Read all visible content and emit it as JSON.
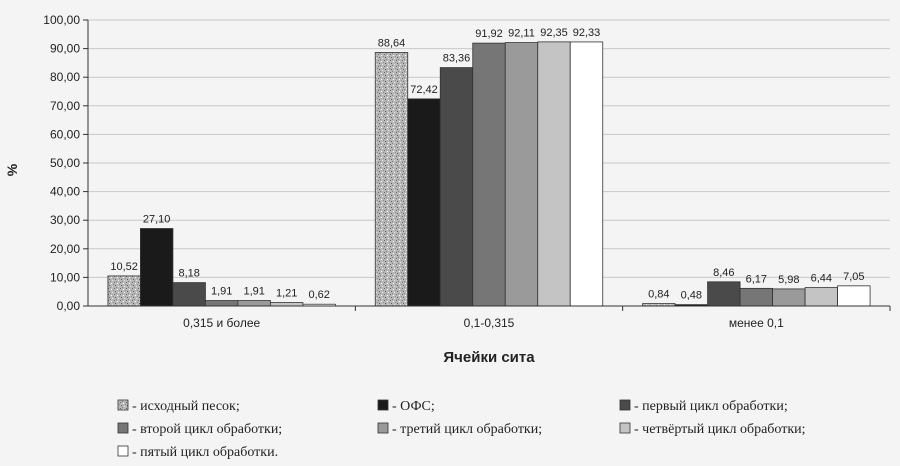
{
  "chart_data": {
    "type": "bar",
    "title": "",
    "xlabel": "Ячейки сита",
    "ylabel": "%",
    "ylim": [
      0,
      100
    ],
    "yticks": [
      "0,00",
      "10,00",
      "20,00",
      "30,00",
      "40,00",
      "50,00",
      "60,00",
      "70,00",
      "80,00",
      "90,00",
      "100,00"
    ],
    "grid": true,
    "legend_position": "bottom",
    "categories": [
      "0,315 и более",
      "0,1-0,315",
      "менее 0,1"
    ],
    "series": [
      {
        "name": "- исходный песок;",
        "values": [
          10.52,
          88.64,
          0.84
        ],
        "labels": [
          "10,52",
          "88,64",
          "0,84"
        ],
        "color": "#bdbdbd",
        "pattern": "speckle"
      },
      {
        "name": "- ОФС;",
        "values": [
          27.1,
          72.42,
          0.48
        ],
        "labels": [
          "27,10",
          "72,42",
          "0,48"
        ],
        "color": "#1a1a1a"
      },
      {
        "name": "- первый цикл обработки;",
        "values": [
          8.18,
          83.36,
          8.46
        ],
        "labels": [
          "8,18",
          "83,36",
          "8,46"
        ],
        "color": "#4a4a4a"
      },
      {
        "name": "- второй цикл обработки;",
        "values": [
          1.91,
          91.92,
          6.17
        ],
        "labels": [
          "1,91",
          "91,92",
          "6,17"
        ],
        "color": "#767676"
      },
      {
        "name": "- третий цикл обработки;",
        "values": [
          1.91,
          92.11,
          5.98
        ],
        "labels": [
          "1,91",
          "92,11",
          "5,98"
        ],
        "color": "#9a9a9a"
      },
      {
        "name": "- четвёртый цикл обработки;",
        "values": [
          1.21,
          92.35,
          6.44
        ],
        "labels": [
          "1,21",
          "92,35",
          "6,44"
        ],
        "color": "#c4c4c4"
      },
      {
        "name": "- пятый цикл обработки.",
        "values": [
          0.62,
          92.33,
          7.05
        ],
        "labels": [
          "0,62",
          "92,33",
          "7,05"
        ],
        "color": "#ffffff"
      }
    ]
  }
}
